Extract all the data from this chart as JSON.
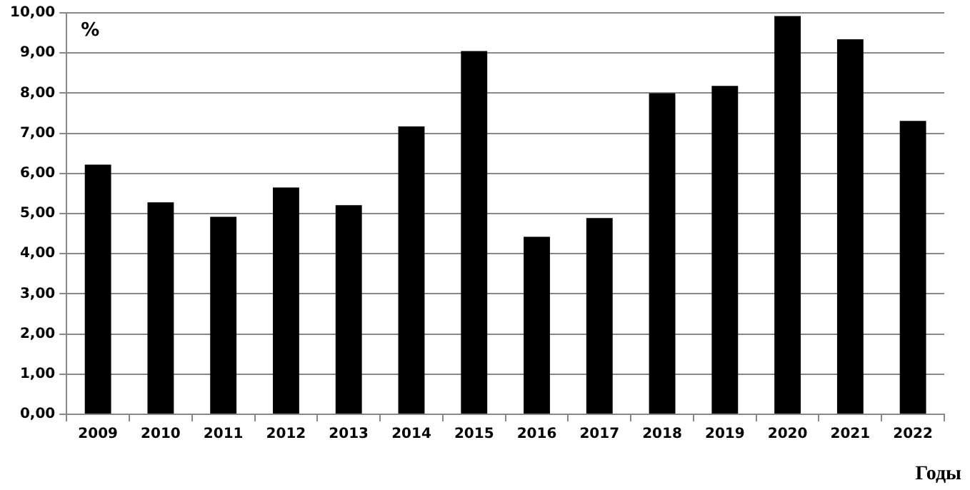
{
  "chart_data": {
    "type": "bar",
    "ylabel": "%",
    "xlabel": "Годы",
    "categories": [
      "2009",
      "2010",
      "2011",
      "2012",
      "2013",
      "2014",
      "2015",
      "2016",
      "2017",
      "2018",
      "2019",
      "2020",
      "2021",
      "2022"
    ],
    "values": [
      6.22,
      5.28,
      4.92,
      5.65,
      5.21,
      7.17,
      9.05,
      4.42,
      4.89,
      8.0,
      8.18,
      9.92,
      9.34,
      7.31
    ],
    "color": "#000000",
    "ylim": [
      0,
      10
    ],
    "yticks": [
      {
        "value": 0,
        "label": "0,00"
      },
      {
        "value": 1,
        "label": "1,00"
      },
      {
        "value": 2,
        "label": "2,00"
      },
      {
        "value": 3,
        "label": "3,00"
      },
      {
        "value": 4,
        "label": "4,00"
      },
      {
        "value": 5,
        "label": "5,00"
      },
      {
        "value": 6,
        "label": "6,00"
      },
      {
        "value": 7,
        "label": "7,00"
      },
      {
        "value": 8,
        "label": "8,00"
      },
      {
        "value": 9,
        "label": "9,00"
      },
      {
        "value": 10,
        "label": "10,00"
      }
    ],
    "grid": "y"
  }
}
